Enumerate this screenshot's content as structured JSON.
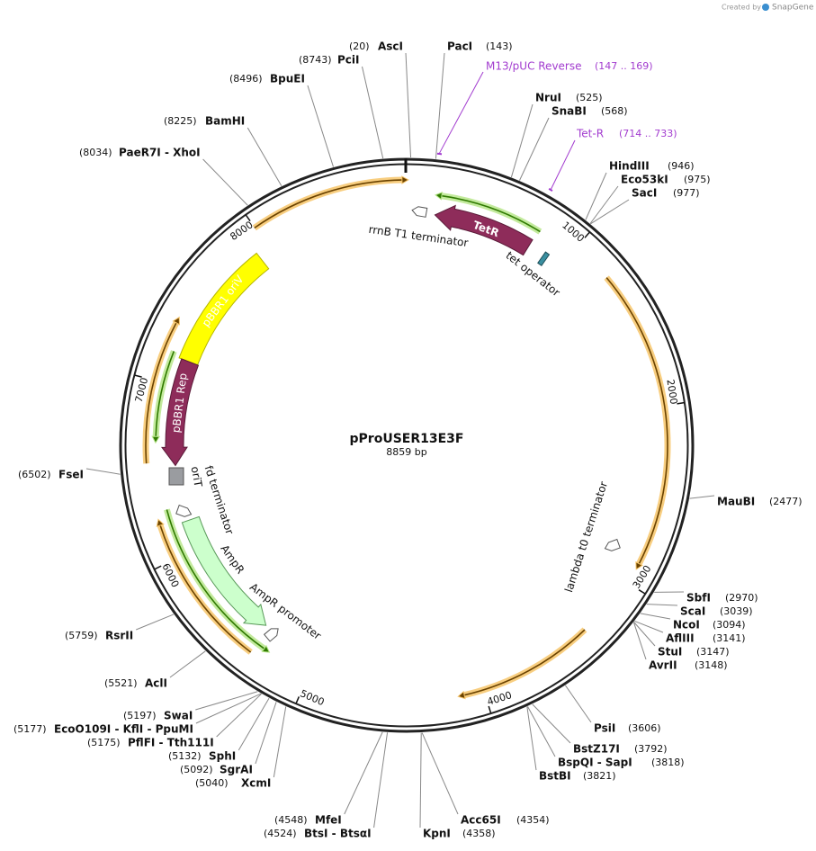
{
  "credit": {
    "prefix": "Created by",
    "brand": "SnapGene"
  },
  "plasmid": {
    "name": "pProUSER13E3F",
    "size_label": "8859 bp",
    "length": 8859
  },
  "ruler": [
    1000,
    2000,
    3000,
    4000,
    5000,
    6000,
    7000,
    8000
  ],
  "sites": [
    {
      "name": "AscI",
      "position": 20,
      "label": "(20)"
    },
    {
      "name": "PacI",
      "position": 143,
      "label": "(143)"
    },
    {
      "name": "NruI",
      "position": 525,
      "label": "(525)"
    },
    {
      "name": "SnaBI",
      "position": 568,
      "label": "(568)"
    },
    {
      "name": "HindIII",
      "position": 946,
      "label": "(946)"
    },
    {
      "name": "Eco53kI",
      "position": 975,
      "label": "(975)"
    },
    {
      "name": "SacI",
      "position": 977,
      "label": "(977)"
    },
    {
      "name": "MauBI",
      "position": 2477,
      "label": "(2477)"
    },
    {
      "name": "SbfI",
      "position": 2970,
      "label": "(2970)"
    },
    {
      "name": "ScaI",
      "position": 3039,
      "label": "(3039)"
    },
    {
      "name": "NcoI",
      "position": 3094,
      "label": "(3094)"
    },
    {
      "name": "AflIII",
      "position": 3141,
      "label": "(3141)"
    },
    {
      "name": "StuI",
      "position": 3147,
      "label": "(3147)"
    },
    {
      "name": "AvrII",
      "position": 3148,
      "label": "(3148)"
    },
    {
      "name": "PsiI",
      "position": 3606,
      "label": "(3606)"
    },
    {
      "name": "BstZ17I",
      "position": 3792,
      "label": "(3792)"
    },
    {
      "name": "BspQI - SapI",
      "position": 3818,
      "label": "(3818)"
    },
    {
      "name": "BstBI",
      "position": 3821,
      "label": "(3821)"
    },
    {
      "name": "Acc65I",
      "position": 4354,
      "label": "(4354)"
    },
    {
      "name": "KpnI",
      "position": 4358,
      "label": "(4358)"
    },
    {
      "name": "BtsI - BtsαI",
      "position": 4524,
      "label": "(4524)"
    },
    {
      "name": "MfeI",
      "position": 4548,
      "label": "(4548)"
    },
    {
      "name": "XcmI",
      "position": 5040,
      "label": "(5040)"
    },
    {
      "name": "SgrAI",
      "position": 5092,
      "label": "(5092)"
    },
    {
      "name": "SphI",
      "position": 5132,
      "label": "(5132)"
    },
    {
      "name": "PflFI - Tth111I",
      "position": 5175,
      "label": "(5175)"
    },
    {
      "name": "EcoO109I - KflI - PpuMI",
      "position": 5177,
      "label": "(5177)"
    },
    {
      "name": "SwaI",
      "position": 5197,
      "label": "(5197)"
    },
    {
      "name": "AclI",
      "position": 5521,
      "label": "(5521)"
    },
    {
      "name": "RsrII",
      "position": 5759,
      "label": "(5759)"
    },
    {
      "name": "FseI",
      "position": 6502,
      "label": "(6502)"
    },
    {
      "name": "PaeR7I - XhoI",
      "position": 8034,
      "label": "(8034)"
    },
    {
      "name": "BamHI",
      "position": 8225,
      "label": "(8225)"
    },
    {
      "name": "BpuEI",
      "position": 8496,
      "label": "(8496)"
    },
    {
      "name": "PciI",
      "position": 8743,
      "label": "(8743)"
    }
  ],
  "primers": [
    {
      "name": "M13/pUC Reverse",
      "start": 147,
      "end": 169,
      "label": "(147 .. 169)"
    },
    {
      "name": "Tet-R",
      "start": 714,
      "end": 733,
      "label": "(714 .. 733)"
    }
  ],
  "features": [
    {
      "label": "TetR"
    },
    {
      "label": "tet operator"
    },
    {
      "label": "rrnB T1 terminator"
    },
    {
      "label": "lambda t0 terminator"
    },
    {
      "label": "pBBR1 oriV"
    },
    {
      "label": "pBBR1 Rep"
    },
    {
      "label": "oriT"
    },
    {
      "label": "fd terminator"
    },
    {
      "label": "AmpR"
    },
    {
      "label": "AmpR promoter"
    }
  ]
}
